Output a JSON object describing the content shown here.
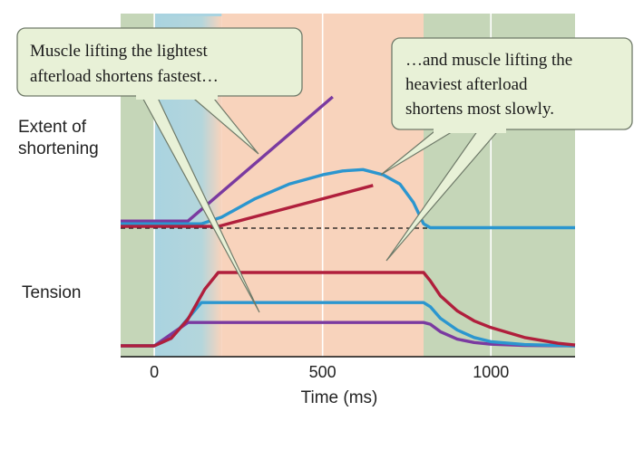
{
  "chart_data": {
    "type": "line",
    "xlabel": "Time (ms)",
    "xlim": [
      -100,
      1250
    ],
    "xticks": [
      0,
      500,
      1000
    ],
    "panels": [
      {
        "label_lines": [
          "Extent of",
          "shortening"
        ]
      },
      {
        "label_lines": [
          "Tension"
        ]
      }
    ],
    "phases": [
      {
        "phase": "rest",
        "range": [
          -100,
          0
        ],
        "color": "#c5d6b8"
      },
      {
        "phase": "isometric",
        "range": [
          0,
          200
        ],
        "color": "#a9d3e0"
      },
      {
        "phase": "isotonic",
        "range": [
          200,
          800
        ],
        "color": "#f8d3bc"
      },
      {
        "phase": "relaxation",
        "range": [
          800,
          1250
        ],
        "color": "#c5d6b8"
      }
    ],
    "colors": {
      "lightest": "#7a3aa0",
      "medium": "#2b96cf",
      "heaviest": "#b01f3c"
    },
    "series": [
      {
        "id": "shortening-lightest",
        "panel": 0,
        "color": "#7a3aa0",
        "x": [
          -100,
          100,
          530
        ],
        "y": [
          0.06,
          0.06,
          1.0
        ]
      },
      {
        "id": "shortening-medium",
        "panel": 0,
        "color": "#2b96cf",
        "x": [
          -100,
          140,
          200,
          300,
          400,
          500,
          560,
          620,
          680,
          730,
          770,
          800,
          820,
          1250
        ],
        "y": [
          0.04,
          0.04,
          0.09,
          0.23,
          0.34,
          0.41,
          0.44,
          0.45,
          0.41,
          0.34,
          0.2,
          0.04,
          0.01,
          0.01
        ]
      },
      {
        "id": "shortening-heaviest",
        "panel": 0,
        "color": "#b01f3c",
        "x": [
          -100,
          190,
          650
        ],
        "y": [
          0.02,
          0.02,
          0.33
        ]
      },
      {
        "id": "tension-lightest",
        "panel": 1,
        "color": "#7a3aa0",
        "x": [
          -100,
          0,
          100,
          800,
          820,
          850,
          900,
          950,
          1000,
          1100,
          1250
        ],
        "y": [
          0.0,
          0.0,
          0.28,
          0.28,
          0.26,
          0.17,
          0.08,
          0.04,
          0.02,
          0.005,
          0.0
        ]
      },
      {
        "id": "tension-medium",
        "panel": 1,
        "color": "#2b96cf",
        "x": [
          -100,
          0,
          50,
          140,
          800,
          820,
          850,
          900,
          950,
          1000,
          1100,
          1250
        ],
        "y": [
          0.0,
          0.0,
          0.09,
          0.52,
          0.52,
          0.47,
          0.33,
          0.19,
          0.1,
          0.05,
          0.015,
          0.0
        ]
      },
      {
        "id": "tension-heaviest",
        "panel": 1,
        "color": "#b01f3c",
        "x": [
          -100,
          0,
          50,
          100,
          150,
          190,
          800,
          820,
          850,
          900,
          950,
          1000,
          1100,
          1200,
          1250
        ],
        "y": [
          0.0,
          0.0,
          0.09,
          0.32,
          0.68,
          0.88,
          0.88,
          0.78,
          0.6,
          0.42,
          0.3,
          0.22,
          0.1,
          0.03,
          0.01
        ]
      }
    ],
    "annotations": [
      {
        "id": "callout-lightest",
        "lines": [
          "Muscle lifting the lightest",
          "afterload shortens fastest…"
        ]
      },
      {
        "id": "callout-heaviest",
        "lines": [
          "…and muscle lifting the",
          "heaviest afterload",
          "shortens most slowly."
        ]
      }
    ]
  }
}
